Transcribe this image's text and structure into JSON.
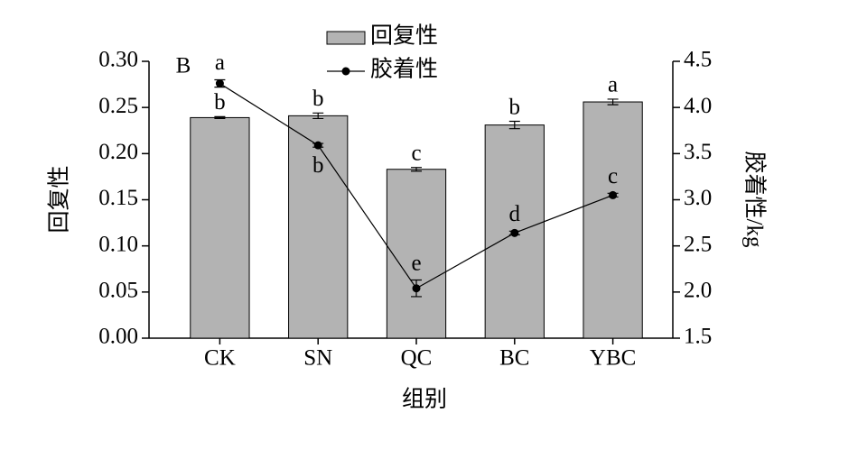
{
  "chart_data": {
    "type": "bar-line",
    "panel_label": "B",
    "x_label": "组别",
    "y_label": "回复性",
    "y2_label": "胶着性/kg",
    "categories": [
      "CK",
      "SN",
      "QC",
      "BC",
      "YBC"
    ],
    "ylim": [
      0,
      0.3
    ],
    "yticks": [
      {
        "value": 0,
        "label": "0.00"
      },
      0.05,
      {
        "value": 0.1,
        "label": "0.10"
      },
      0.15,
      {
        "value": 0.2,
        "label": "0.20"
      },
      0.25,
      {
        "value": 0.3,
        "label": "0.30"
      }
    ],
    "y2lim": [
      1.5,
      4.5
    ],
    "y2ticks": [
      1.5,
      {
        "value": 2,
        "label": "2.0"
      },
      2.5,
      {
        "value": 3,
        "label": "3.0"
      },
      3.5,
      {
        "value": 4,
        "label": "4.0"
      },
      4.5
    ],
    "series": [
      {
        "name": "回复性",
        "type": "bar",
        "color": "#b3b3b3",
        "values": [
          0.239,
          0.241,
          0.183,
          0.231,
          0.256
        ],
        "errors": [
          0.001,
          0.003,
          0.002,
          0.004,
          0.003
        ],
        "labels": [
          "b",
          "b",
          "c",
          "b",
          "a"
        ]
      },
      {
        "name": "胶着性",
        "type": "line",
        "axis": "y2",
        "color": "#000000",
        "values": [
          4.26,
          3.59,
          2.04,
          2.64,
          3.05
        ],
        "errors": [
          0.04,
          0.02,
          0.09,
          0.02,
          0.02
        ],
        "labels": [
          "a",
          "b",
          "e",
          "d",
          "c"
        ]
      }
    ]
  }
}
